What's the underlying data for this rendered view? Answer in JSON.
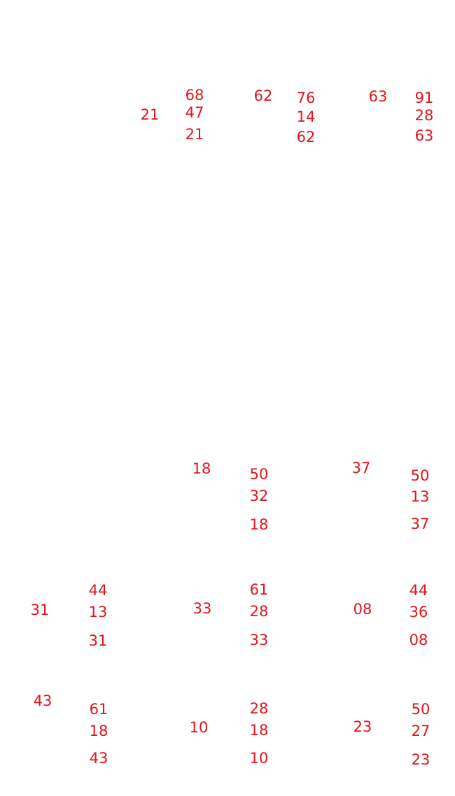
{
  "problems": [
    {
      "answer": "21",
      "minuend": "68",
      "subtrahend": "47",
      "result": "21"
    },
    {
      "answer": "62",
      "minuend": "76",
      "subtrahend": "14",
      "result": "62"
    },
    {
      "answer": "63",
      "minuend": "91",
      "subtrahend": "28",
      "result": "63"
    },
    {
      "answer": "18",
      "minuend": "50",
      "subtrahend": "32",
      "result": "18"
    },
    {
      "answer": "37",
      "minuend": "50",
      "subtrahend": "13",
      "result": "37"
    },
    {
      "answer": "31",
      "minuend": "44",
      "subtrahend": "13",
      "result": "31"
    },
    {
      "answer": "33",
      "minuend": "61",
      "subtrahend": "28",
      "result": "33"
    },
    {
      "answer": "08",
      "minuend": "44",
      "subtrahend": "36",
      "result": "08"
    },
    {
      "answer": "43",
      "minuend": "61",
      "subtrahend": "18",
      "result": "43"
    },
    {
      "answer": "10",
      "minuend": "28",
      "subtrahend": "18",
      "result": "10"
    },
    {
      "answer": "23",
      "minuend": "50",
      "subtrahend": "27",
      "result": "23"
    }
  ]
}
